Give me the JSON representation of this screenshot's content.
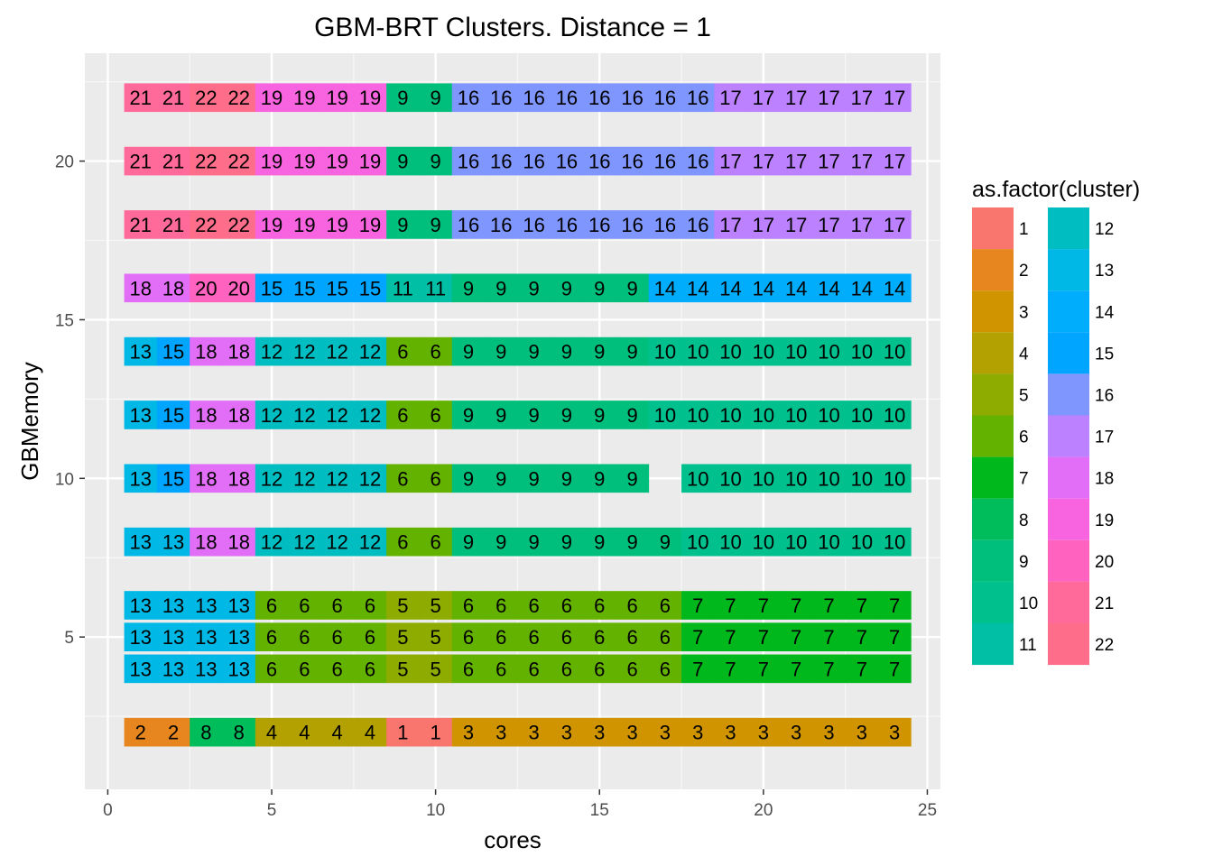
{
  "chart_data": {
    "type": "heatmap",
    "title": "GBM-BRT Clusters. Distance =  1",
    "xlabel": "cores",
    "ylabel": "GBMemory",
    "xlim": [
      -0.7,
      25.4
    ],
    "ylim": [
      0.2,
      23.4
    ],
    "x_ticks": [
      0,
      5,
      10,
      15,
      20,
      25
    ],
    "y_ticks": [
      5,
      10,
      15,
      20
    ],
    "grid": true,
    "legend_position": "right",
    "legend_title": "as.factor(cluster)",
    "clusters": [
      "1",
      "2",
      "3",
      "4",
      "5",
      "6",
      "7",
      "8",
      "9",
      "10",
      "11",
      "12",
      "13",
      "14",
      "15",
      "16",
      "17",
      "18",
      "19",
      "20",
      "21",
      "22"
    ],
    "colors": [
      "#F8766D",
      "#E7851E",
      "#D09400",
      "#B2A100",
      "#8EAB00",
      "#64B200",
      "#00B81B",
      "#00BD5C",
      "#00BF7D",
      "#00C08E",
      "#00BFA5",
      "#00BDC2",
      "#00B8E5",
      "#00ACFC",
      "#00A5FF",
      "#7F96FF",
      "#BC81FF",
      "#E26EF7",
      "#F863DF",
      "#FF62BF",
      "#FF6A9A",
      "#FE6E8A"
    ],
    "rows": [
      {
        "y": 2,
        "x_start": 1,
        "clusters": [
          2,
          2,
          8,
          8,
          4,
          4,
          4,
          4,
          1,
          1,
          3,
          3,
          3,
          3,
          3,
          3,
          3,
          3,
          3,
          3,
          3,
          3,
          3,
          3
        ]
      },
      {
        "y": 4,
        "x_start": 1,
        "clusters": [
          13,
          13,
          13,
          13,
          6,
          6,
          6,
          6,
          5,
          5,
          6,
          6,
          6,
          6,
          6,
          6,
          6,
          7,
          7,
          7,
          7,
          7,
          7,
          7
        ]
      },
      {
        "y": 5,
        "x_start": 1,
        "clusters": [
          13,
          13,
          13,
          13,
          6,
          6,
          6,
          6,
          5,
          5,
          6,
          6,
          6,
          6,
          6,
          6,
          6,
          7,
          7,
          7,
          7,
          7,
          7,
          7
        ]
      },
      {
        "y": 6,
        "x_start": 1,
        "clusters": [
          13,
          13,
          13,
          13,
          6,
          6,
          6,
          6,
          5,
          5,
          6,
          6,
          6,
          6,
          6,
          6,
          6,
          7,
          7,
          7,
          7,
          7,
          7,
          7
        ]
      },
      {
        "y": 8,
        "x_start": 1,
        "clusters": [
          13,
          13,
          18,
          18,
          12,
          12,
          12,
          12,
          6,
          6,
          9,
          9,
          9,
          9,
          9,
          9,
          9,
          10,
          10,
          10,
          10,
          10,
          10,
          10
        ]
      },
      {
        "y": 10,
        "x_start": 1,
        "clusters": [
          13,
          15,
          18,
          18,
          12,
          12,
          12,
          12,
          6,
          6,
          9,
          9,
          9,
          9,
          9,
          9,
          null,
          10,
          10,
          10,
          10,
          10,
          10,
          10
        ]
      },
      {
        "y": 12,
        "x_start": 1,
        "clusters": [
          13,
          15,
          18,
          18,
          12,
          12,
          12,
          12,
          6,
          6,
          9,
          9,
          9,
          9,
          9,
          9,
          10,
          10,
          10,
          10,
          10,
          10,
          10,
          10
        ]
      },
      {
        "y": 14,
        "x_start": 1,
        "clusters": [
          13,
          15,
          18,
          18,
          12,
          12,
          12,
          12,
          6,
          6,
          9,
          9,
          9,
          9,
          9,
          9,
          10,
          10,
          10,
          10,
          10,
          10,
          10,
          10
        ]
      },
      {
        "y": 16,
        "x_start": 1,
        "clusters": [
          18,
          18,
          20,
          20,
          15,
          15,
          15,
          15,
          11,
          11,
          9,
          9,
          9,
          9,
          9,
          9,
          14,
          14,
          14,
          14,
          14,
          14,
          14,
          14
        ]
      },
      {
        "y": 18,
        "x_start": 1,
        "clusters": [
          21,
          21,
          22,
          22,
          19,
          19,
          19,
          19,
          9,
          9,
          16,
          16,
          16,
          16,
          16,
          16,
          16,
          16,
          17,
          17,
          17,
          17,
          17,
          17
        ]
      },
      {
        "y": 20,
        "x_start": 1,
        "clusters": [
          21,
          21,
          22,
          22,
          19,
          19,
          19,
          19,
          9,
          9,
          16,
          16,
          16,
          16,
          16,
          16,
          16,
          16,
          17,
          17,
          17,
          17,
          17,
          17
        ]
      },
      {
        "y": 22,
        "x_start": 1,
        "clusters": [
          21,
          21,
          22,
          22,
          19,
          19,
          19,
          19,
          9,
          9,
          16,
          16,
          16,
          16,
          16,
          16,
          16,
          16,
          17,
          17,
          17,
          17,
          17,
          17
        ]
      }
    ]
  }
}
